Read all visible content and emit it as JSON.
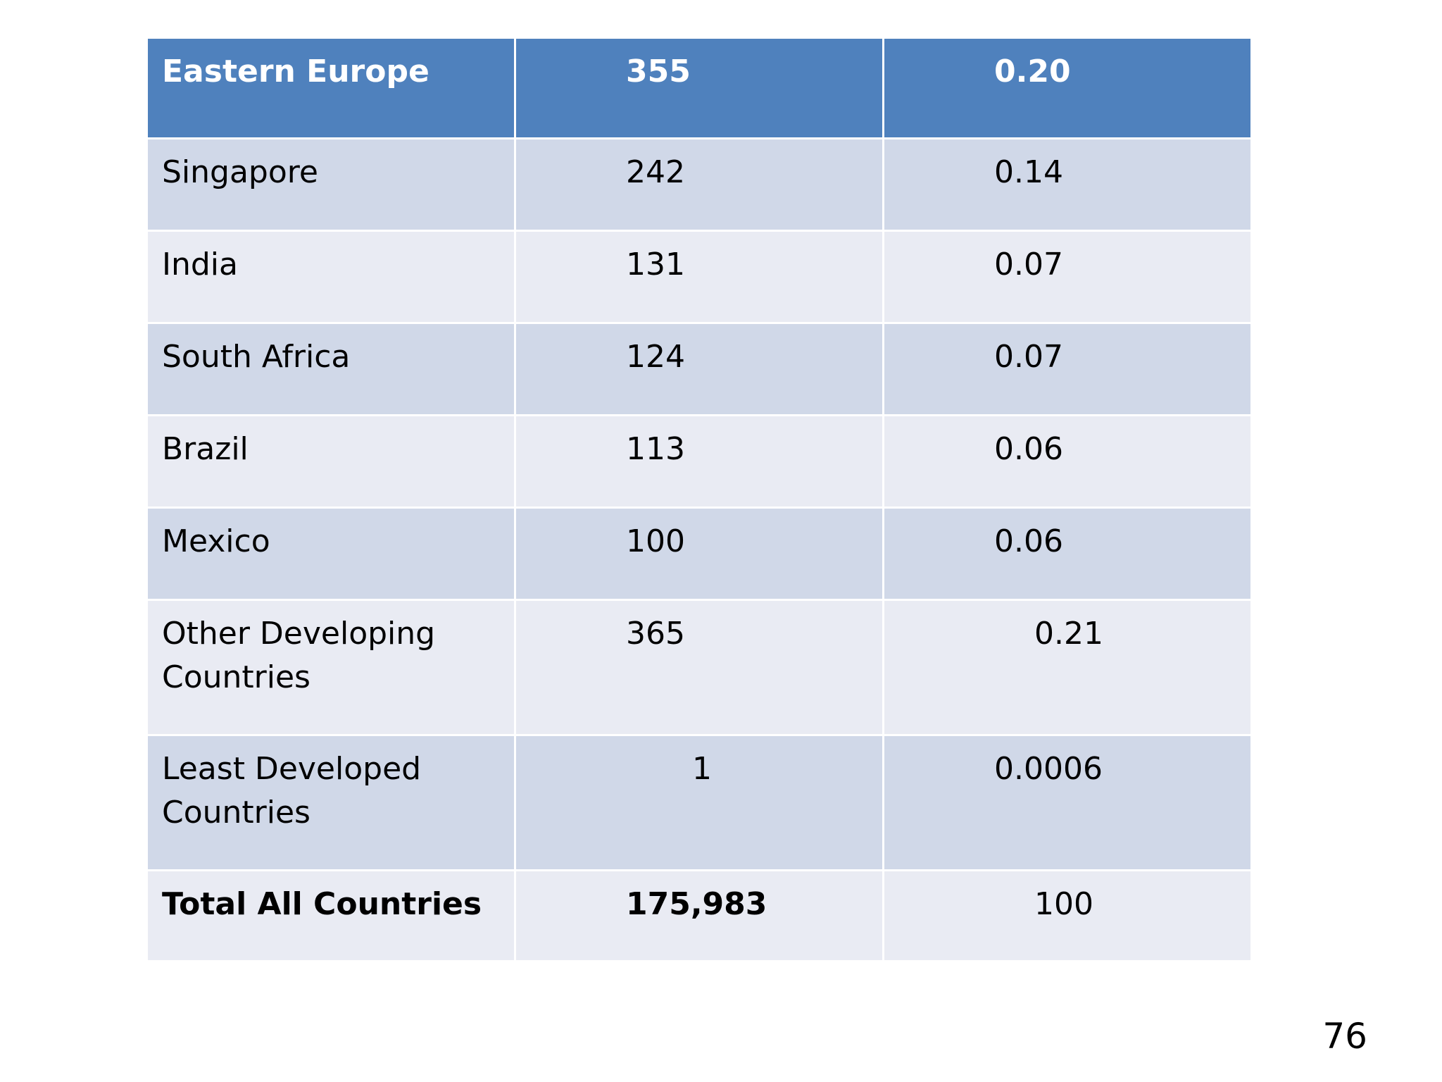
{
  "table": {
    "header": {
      "name": "Eastern Europe",
      "value": "355",
      "pct": "0.20"
    },
    "rows": [
      {
        "name": "Singapore",
        "value": "242",
        "pct": "0.14"
      },
      {
        "name": "India",
        "value": "131",
        "pct": "0.07"
      },
      {
        "name": "South Africa",
        "value": "124",
        "pct": "0.07"
      },
      {
        "name": "Brazil",
        "value": "113",
        "pct": "0.06"
      },
      {
        "name": "Mexico",
        "value": "100",
        "pct": "0.06"
      },
      {
        "name": "Other Developing Countries",
        "value": "365",
        "pct": "0.21"
      },
      {
        "name": "Least Developed Countries",
        "value": "1",
        "pct": "0.0006"
      }
    ],
    "total": {
      "name": "Total All Countries",
      "value": "175,983",
      "pct": "100"
    }
  },
  "page_number": "76"
}
